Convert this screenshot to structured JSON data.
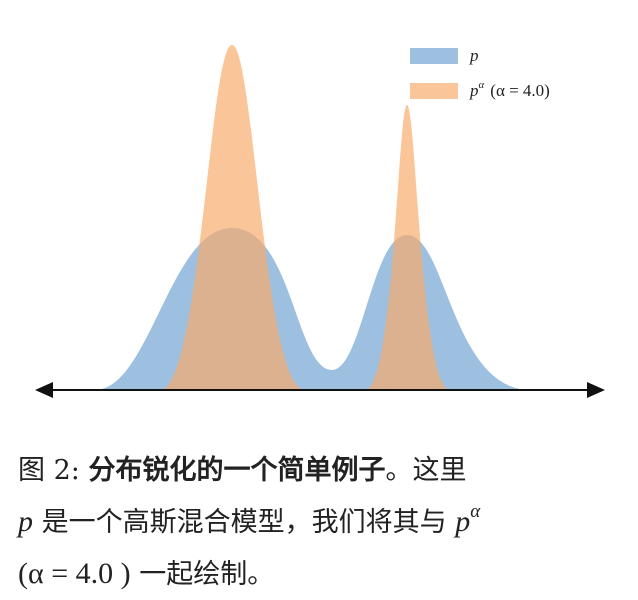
{
  "figure": {
    "legend": [
      {
        "label": "p"
      },
      {
        "label": "p",
        "superscript": "α",
        "note": "(α = 4.0)"
      }
    ]
  },
  "caption": {
    "lines": [
      [
        "图 2:",
        "分布锐化的一个简单例子",
        "。这里"
      ],
      [
        "p",
        "是一个高斯混合模型，我们将其与",
        "p",
        "α"
      ],
      [
        "(α = 4.0 )",
        "一起绘制。"
      ]
    ]
  }
}
